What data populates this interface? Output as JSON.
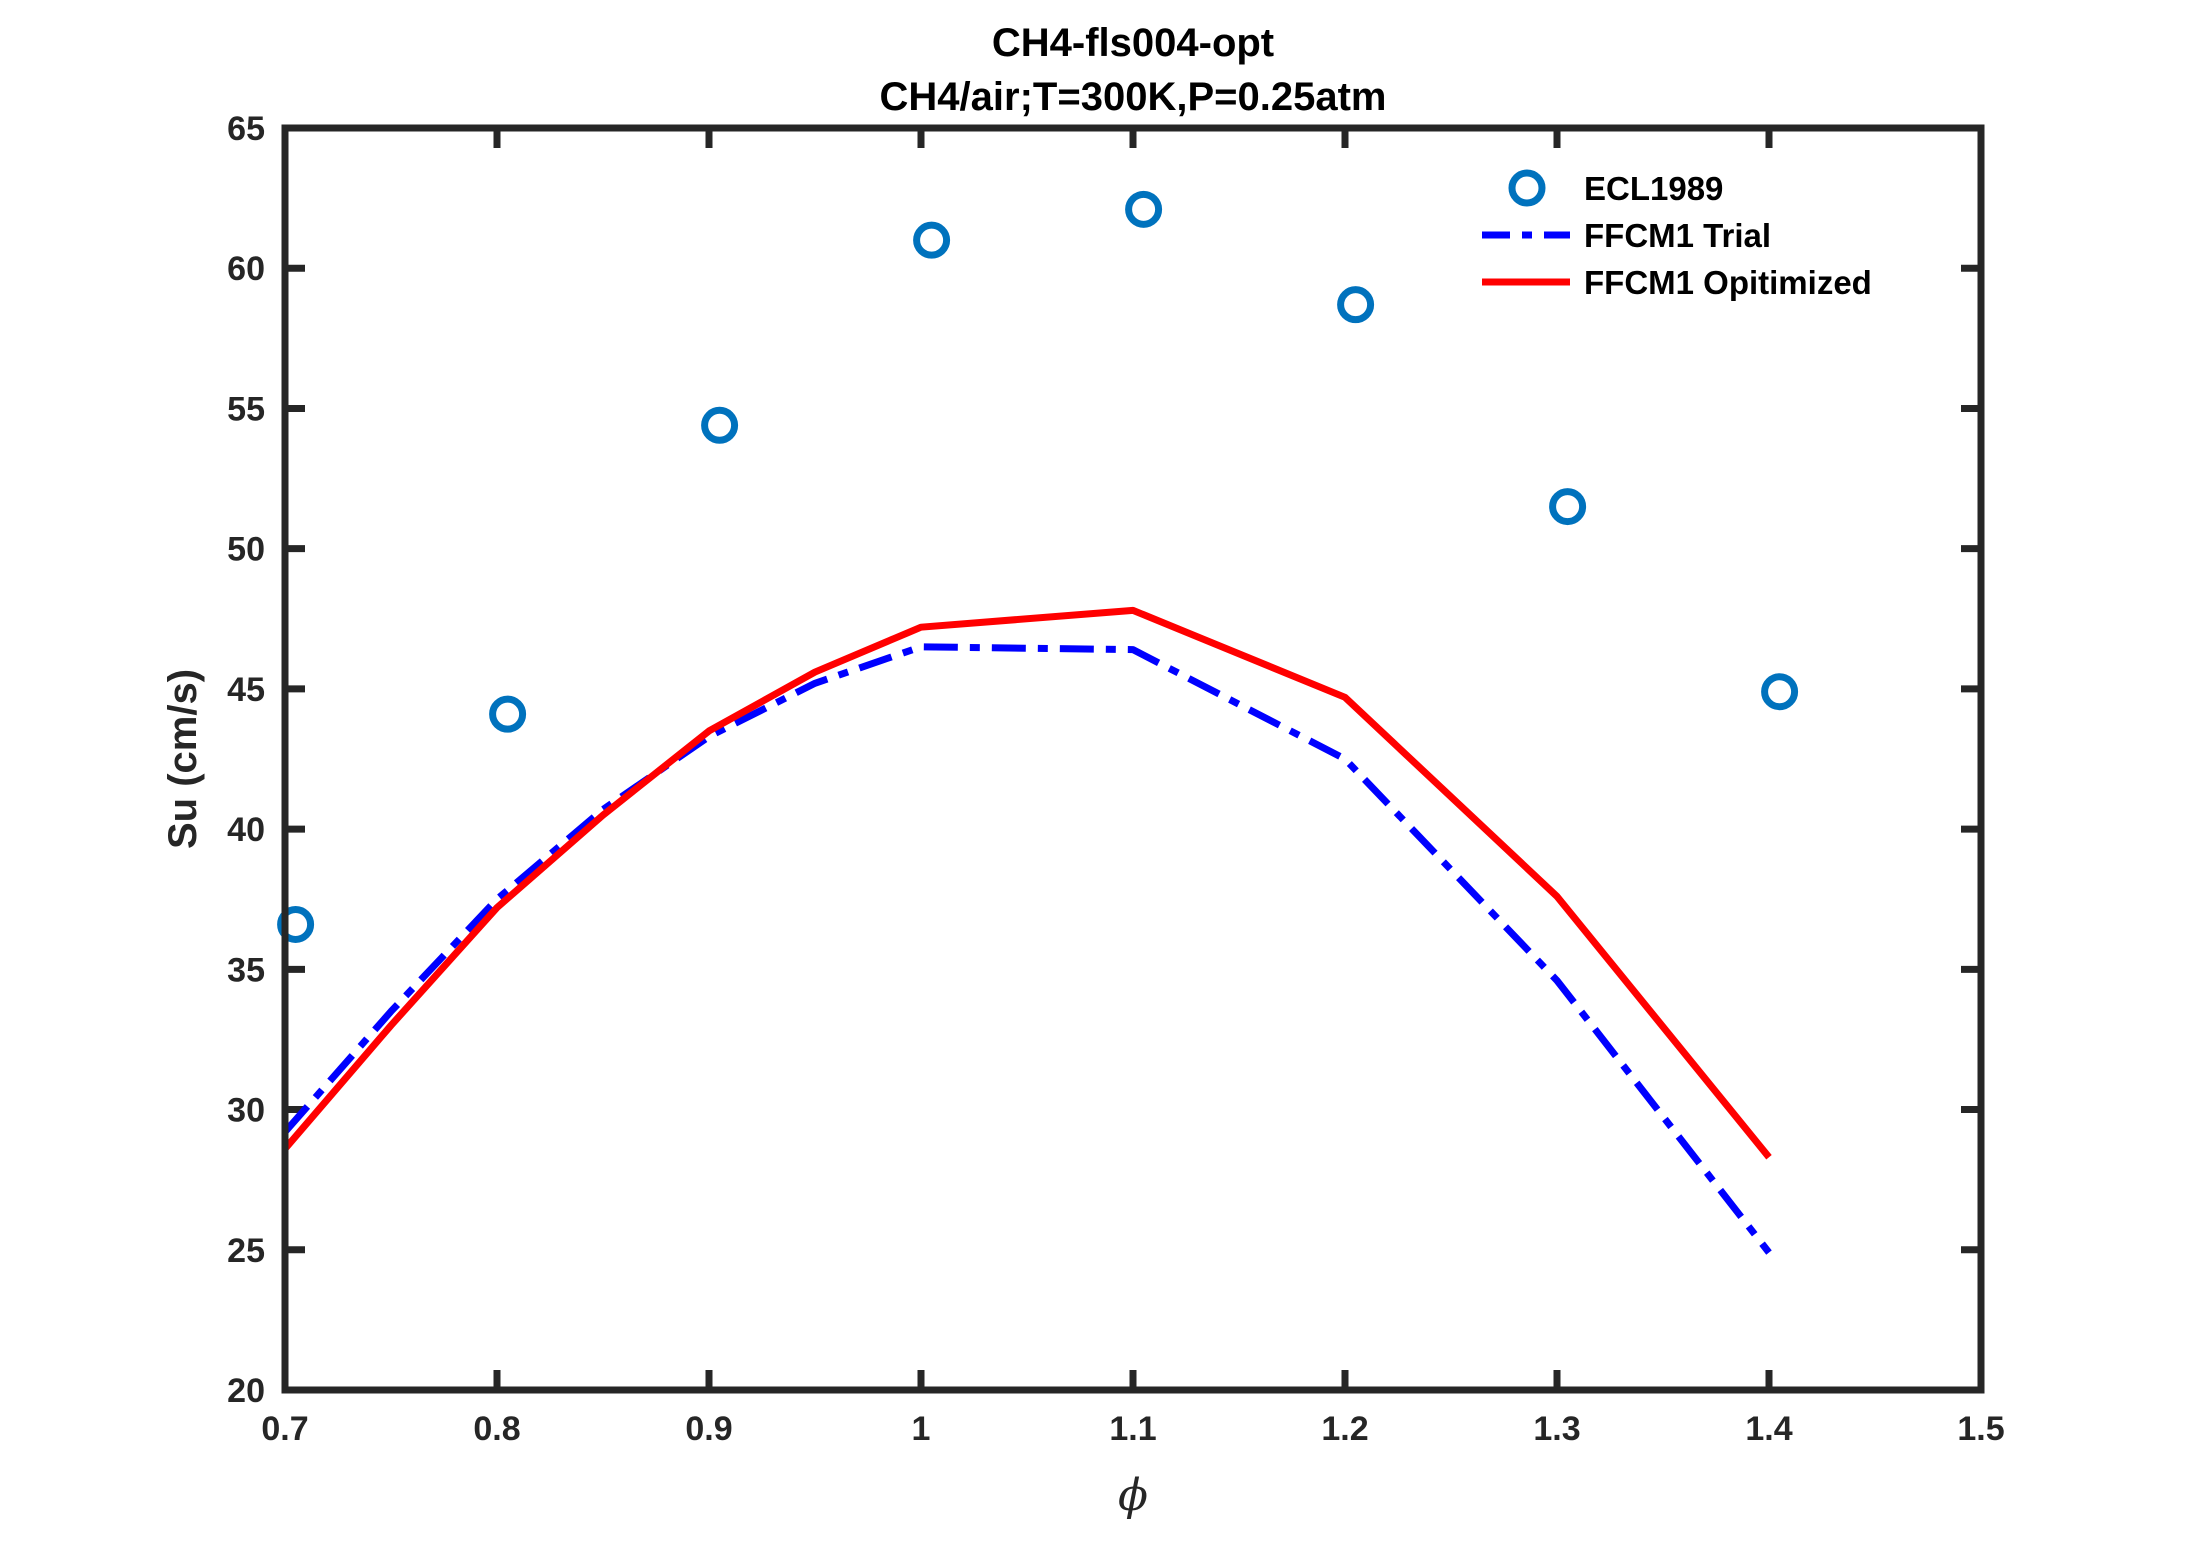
{
  "chart_data": {
    "type": "line",
    "title": "CH4-fls004-opt",
    "subtitle": "CH4/air;T=300K,P=0.25atm",
    "xlabel": "ϕ",
    "ylabel": "Su (cm/s)",
    "xlim": [
      0.7,
      1.5
    ],
    "ylim": [
      20,
      65
    ],
    "xticks": [
      "0.7",
      "0.8",
      "0.9",
      "1",
      "1.1",
      "1.2",
      "1.3",
      "1.4",
      "1.5"
    ],
    "yticks": [
      "20",
      "25",
      "30",
      "35",
      "40",
      "45",
      "50",
      "55",
      "60",
      "65"
    ],
    "grid": false,
    "legend_position": "top-right",
    "series": [
      {
        "name": "ECL1989",
        "style": "markers",
        "color": "#0072BD",
        "x": [
          0.705,
          0.805,
          0.905,
          1.005,
          1.105,
          1.205,
          1.305,
          1.405
        ],
        "y": [
          36.6,
          44.1,
          54.4,
          61.0,
          62.1,
          58.7,
          51.5,
          44.9
        ]
      },
      {
        "name": "FFCM1 Trial",
        "style": "dashdot",
        "color": "#0000FF",
        "x": [
          0.7,
          0.75,
          0.8,
          0.85,
          0.9,
          0.95,
          1.0,
          1.1,
          1.2,
          1.3,
          1.4
        ],
        "y": [
          29.2,
          33.5,
          37.5,
          40.7,
          43.3,
          45.2,
          46.5,
          46.4,
          42.5,
          34.6,
          24.9
        ]
      },
      {
        "name": "FFCM1 Opitimized",
        "style": "solid",
        "color": "#FF0000",
        "x": [
          0.7,
          0.75,
          0.8,
          0.85,
          0.9,
          0.95,
          1.0,
          1.1,
          1.2,
          1.3,
          1.4
        ],
        "y": [
          28.6,
          33.0,
          37.2,
          40.5,
          43.5,
          45.6,
          47.2,
          47.8,
          44.7,
          37.6,
          28.3
        ]
      }
    ]
  }
}
